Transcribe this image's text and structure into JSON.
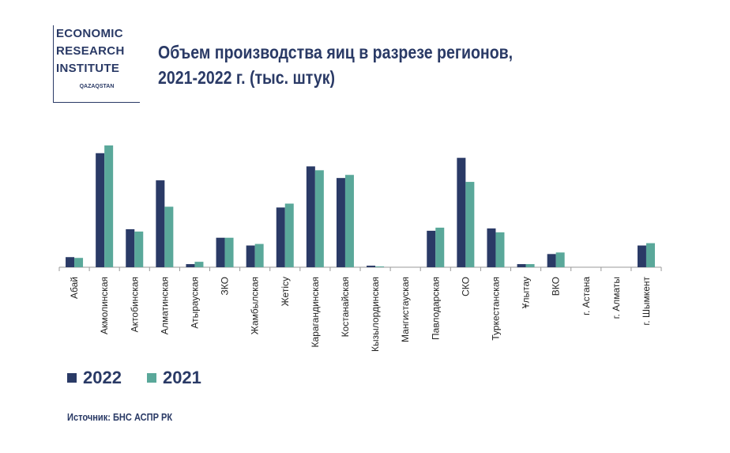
{
  "logo": {
    "lines": [
      "ECONOMIC",
      "RESEARCH",
      "INSTITUTE"
    ],
    "sub": "QAZAQSTAN"
  },
  "title_lines": [
    "Объем производства яиц в разрезе регионов,",
    "2021-2022 г. (тыс. штук)"
  ],
  "source": "Источник: БНС АСПР РК",
  "chart_data": {
    "type": "bar",
    "title": "Объем производства яиц в разрезе регионов, 2021-2022 г. (тыс. штук)",
    "xlabel": "",
    "ylabel": "",
    "note": "relative values (no y-axis shown)",
    "categories": [
      "Абай",
      "Акмолинская",
      "Актобинская",
      "Алматинская",
      "Атырауская",
      "ЗКО",
      "Жамбылская",
      "Жетісу",
      "Карагандинская",
      "Костанайская",
      "Кызылординская",
      "Мангистауская",
      "Павлодарская",
      "СКО",
      "Туркестанская",
      "Ұлытау",
      "ВКО",
      "г. Астана",
      "г. Алматы",
      "г. Шымкент"
    ],
    "series": [
      {
        "name": "2022",
        "color": "#2a3a66",
        "values": [
          13,
          147,
          49,
          112,
          4,
          38,
          28,
          77,
          130,
          115,
          2,
          0,
          47,
          141,
          50,
          4,
          17,
          0,
          0,
          28
        ]
      },
      {
        "name": "2021",
        "color": "#5aa89a",
        "values": [
          12,
          157,
          46,
          78,
          7,
          38,
          30,
          82,
          125,
          119,
          1,
          0,
          51,
          110,
          45,
          4,
          19,
          0,
          0,
          31
        ]
      }
    ],
    "ylim": [
      0,
      160
    ],
    "grid": false,
    "legend": "bottom-left"
  }
}
